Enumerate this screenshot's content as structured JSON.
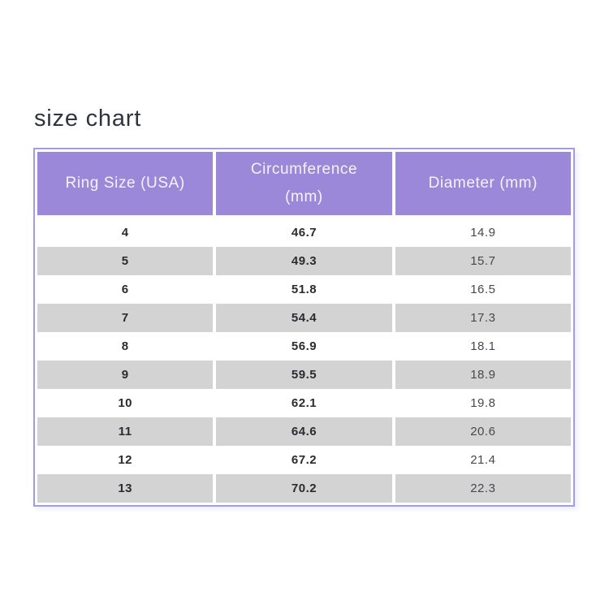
{
  "title": "size chart",
  "table": {
    "headers": [
      {
        "lines": [
          "Ring Size (USA)"
        ]
      },
      {
        "lines": [
          "Circumference",
          "(mm)"
        ]
      },
      {
        "lines": [
          "Diameter (mm)"
        ]
      }
    ]
  },
  "chart_data": {
    "type": "table",
    "title": "size chart",
    "columns": [
      "Ring Size (USA)",
      "Circumference (mm)",
      "Diameter (mm)"
    ],
    "rows": [
      [
        "4",
        "46.7",
        "14.9"
      ],
      [
        "5",
        "49.3",
        "15.7"
      ],
      [
        "6",
        "51.8",
        "16.5"
      ],
      [
        "7",
        "54.4",
        "17.3"
      ],
      [
        "8",
        "56.9",
        "18.1"
      ],
      [
        "9",
        "59.5",
        "18.9"
      ],
      [
        "10",
        "62.1",
        "19.8"
      ],
      [
        "11",
        "64.6",
        "20.6"
      ],
      [
        "12",
        "67.2",
        "21.4"
      ],
      [
        "13",
        "70.2",
        "22.3"
      ]
    ],
    "layout": {
      "alternating_rows": true,
      "first_row_background": "white",
      "header_position": "top"
    }
  },
  "colors": {
    "header_bg": "#9c88d9",
    "header_text": "#f5f2fc",
    "border": "#a29ce6",
    "row_bg": "#ffffff",
    "row_alt_bg": "#d3d3d3",
    "title_text": "#2e3540",
    "cell_text": "#2b2b31",
    "diameter_text": "#47474f"
  }
}
